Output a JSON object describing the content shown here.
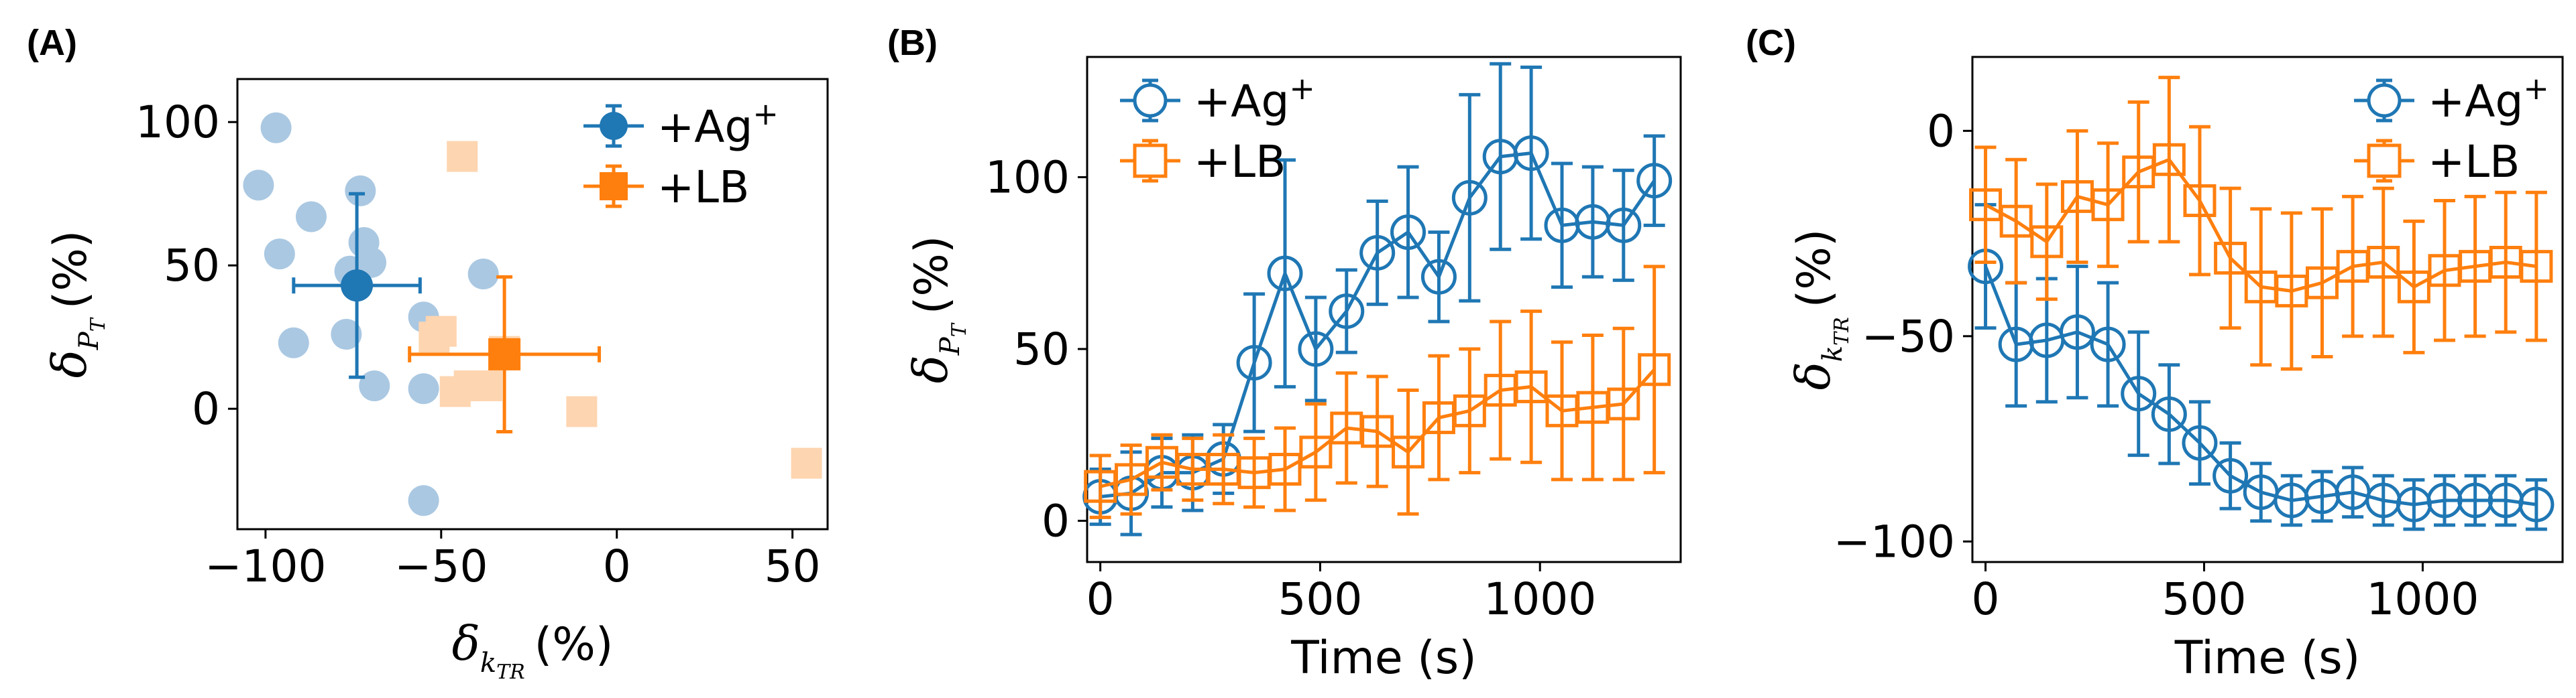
{
  "colors": {
    "blue": "#1f77b4",
    "orange": "#ff7f0e",
    "blue_light": "#aac8e2",
    "orange_light": "#fdd5b0"
  },
  "chart_data": [
    {
      "panel": "(A)",
      "type": "scatter",
      "title": "",
      "xlabel_symbol": "δ",
      "xlabel_sub": "k_TR",
      "xlabel_unit": "(%)",
      "ylabel_symbol": "δ",
      "ylabel_sub": "P_T",
      "ylabel_unit": "(%)",
      "xlim": [
        -108,
        60
      ],
      "ylim": [
        -42,
        115
      ],
      "xticks": [
        -100,
        -50,
        0,
        50
      ],
      "xtick_labels": [
        "−100",
        "−50",
        "0",
        "50"
      ],
      "yticks": [
        0,
        50,
        100
      ],
      "ytick_labels": [
        "0",
        "50",
        "100"
      ],
      "legend": {
        "position": "top-right",
        "entries": [
          {
            "label": "+Ag",
            "sup": "+"
          },
          {
            "label": "+LB",
            "sup": ""
          }
        ]
      },
      "series": [
        {
          "name": "+Ag+ (individual)",
          "marker": "circle",
          "x": [
            -97,
            -102,
            -96,
            -87,
            -73,
            -72,
            -77,
            -70,
            -92,
            -76,
            -55,
            -69,
            -55,
            -38,
            -55
          ],
          "y": [
            98,
            78,
            54,
            67,
            76,
            58,
            26,
            51,
            23,
            48,
            32,
            8,
            7,
            47,
            -32
          ]
        },
        {
          "name": "+LB (individual)",
          "marker": "square",
          "x": [
            -44,
            -50,
            -52,
            -42,
            -46,
            -37,
            -32,
            -10,
            54
          ],
          "y": [
            88,
            27,
            25,
            8,
            6,
            8,
            20,
            -1,
            -19
          ]
        },
        {
          "name": "+Ag+",
          "marker": "circle",
          "x": [
            -74
          ],
          "y": [
            43
          ],
          "xerr": [
            18
          ],
          "yerr": [
            32
          ]
        },
        {
          "name": "+LB",
          "marker": "square",
          "x": [
            -32
          ],
          "y": [
            19
          ],
          "xerr": [
            27
          ],
          "yerr": [
            27
          ]
        }
      ]
    },
    {
      "panel": "(B)",
      "type": "line",
      "title": "",
      "xlabel": "Time (s)",
      "ylabel_symbol": "δ",
      "ylabel_sub": "P_T",
      "ylabel_unit": "(%)",
      "xlim": [
        -30,
        1320
      ],
      "ylim": [
        -12,
        135
      ],
      "xticks": [
        0,
        500,
        1000
      ],
      "xtick_labels": [
        "0",
        "500",
        "1000"
      ],
      "yticks": [
        0,
        50,
        100
      ],
      "ytick_labels": [
        "0",
        "50",
        "100"
      ],
      "legend": {
        "position": "top-left",
        "entries": [
          {
            "label": "+Ag",
            "sup": "+"
          },
          {
            "label": "+LB",
            "sup": ""
          }
        ]
      },
      "x": [
        0,
        70,
        140,
        210,
        280,
        350,
        420,
        490,
        560,
        630,
        700,
        770,
        840,
        910,
        980,
        1050,
        1120,
        1190,
        1260
      ],
      "series": [
        {
          "name": "+Ag+",
          "marker": "circle",
          "values": [
            7,
            8,
            14,
            14,
            18,
            46,
            72,
            50,
            61,
            78,
            84,
            71,
            94,
            106,
            107,
            86,
            87,
            86,
            99
          ],
          "err": [
            8,
            12,
            10,
            11,
            10,
            20,
            33,
            15,
            12,
            15,
            19,
            13,
            30,
            27,
            25,
            18,
            16,
            16,
            13
          ]
        },
        {
          "name": "+LB",
          "marker": "square",
          "values": [
            10,
            12,
            17,
            15,
            15,
            14,
            15,
            20,
            27,
            26,
            20,
            30,
            32,
            38,
            39,
            32,
            33,
            34,
            44
          ],
          "err": [
            9,
            10,
            8,
            9,
            10,
            10,
            12,
            14,
            16,
            16,
            18,
            18,
            18,
            20,
            22,
            20,
            21,
            22,
            30
          ]
        }
      ]
    },
    {
      "panel": "(C)",
      "type": "line",
      "title": "",
      "xlabel": "Time (s)",
      "ylabel_symbol": "δ",
      "ylabel_sub": "k_TR",
      "ylabel_unit": "(%)",
      "xlim": [
        -30,
        1320
      ],
      "ylim": [
        -105,
        18
      ],
      "xticks": [
        0,
        500,
        1000
      ],
      "xtick_labels": [
        "0",
        "500",
        "1000"
      ],
      "yticks": [
        -100,
        -50,
        0
      ],
      "ytick_labels": [
        "−100",
        "−50",
        "0"
      ],
      "legend": {
        "position": "top-right",
        "entries": [
          {
            "label": "+Ag",
            "sup": "+"
          },
          {
            "label": "+LB",
            "sup": ""
          }
        ]
      },
      "x": [
        0,
        70,
        140,
        210,
        280,
        350,
        420,
        490,
        560,
        630,
        700,
        770,
        840,
        910,
        980,
        1050,
        1120,
        1190,
        1260
      ],
      "series": [
        {
          "name": "+Ag+",
          "marker": "circle",
          "values": [
            -33,
            -52,
            -51,
            -49,
            -52,
            -64,
            -69,
            -76,
            -84,
            -88,
            -90,
            -89,
            -88,
            -90,
            -91,
            -90,
            -90,
            -90,
            -91
          ],
          "err": [
            15,
            15,
            15,
            16,
            15,
            15,
            12,
            10,
            8,
            7,
            6,
            6,
            6,
            6,
            6,
            6,
            6,
            6,
            6
          ]
        },
        {
          "name": "+LB",
          "marker": "square",
          "values": [
            -18,
            -22,
            -27,
            -16,
            -18,
            -10,
            -7,
            -17,
            -31,
            -38,
            -39,
            -37,
            -33,
            -32,
            -38,
            -34,
            -33,
            -32,
            -33
          ],
          "err": [
            14,
            15,
            14,
            16,
            15,
            17,
            20,
            18,
            17,
            19,
            19,
            18,
            17,
            18,
            16,
            17,
            17,
            17,
            18
          ]
        }
      ]
    }
  ]
}
